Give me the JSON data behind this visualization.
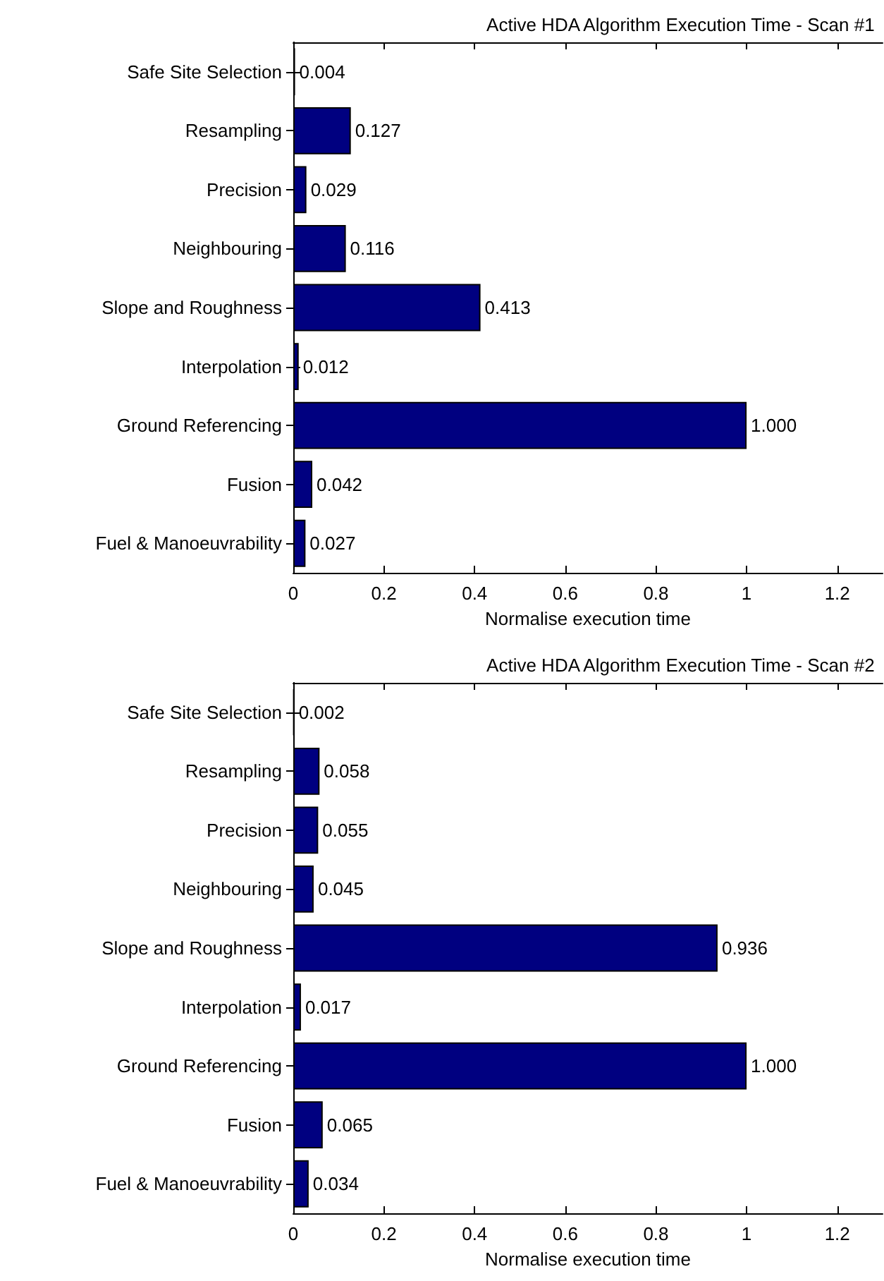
{
  "chart_data": [
    {
      "type": "bar",
      "orientation": "horizontal",
      "title": "Active HDA Algorithm Execution Time - Scan #1",
      "xlabel": "Normalise execution time",
      "categories": [
        "Safe Site Selection",
        "Resampling",
        "Precision",
        "Neighbouring",
        "Slope and Roughness",
        "Interpolation",
        "Ground Referencing",
        "Fusion",
        "Fuel & Manoeuvrability"
      ],
      "values": [
        0.004,
        0.127,
        0.029,
        0.116,
        0.413,
        0.012,
        1.0,
        0.042,
        0.027
      ],
      "value_labels": [
        "0.004",
        "0.127",
        "0.029",
        "0.116",
        "0.413",
        "0.012",
        "1.000",
        "0.042",
        "0.027"
      ],
      "color": "#000080",
      "xlim": [
        0,
        1.3
      ],
      "xticks": [
        0,
        0.2,
        0.4,
        0.6,
        0.8,
        1,
        1.2
      ]
    },
    {
      "type": "bar",
      "orientation": "horizontal",
      "title": "Active HDA Algorithm Execution Time - Scan #2",
      "xlabel": "Normalise execution time",
      "categories": [
        "Safe Site Selection",
        "Resampling",
        "Precision",
        "Neighbouring",
        "Slope and Roughness",
        "Interpolation",
        "Ground Referencing",
        "Fusion",
        "Fuel & Manoeuvrability"
      ],
      "values": [
        0.002,
        0.058,
        0.055,
        0.045,
        0.936,
        0.017,
        1.0,
        0.065,
        0.034
      ],
      "value_labels": [
        "0.002",
        "0.058",
        "0.055",
        "0.045",
        "0.936",
        "0.017",
        "1.000",
        "0.065",
        "0.034"
      ],
      "color": "#000080",
      "xlim": [
        0,
        1.3
      ],
      "xticks": [
        0,
        0.2,
        0.4,
        0.6,
        0.8,
        1,
        1.2
      ]
    }
  ]
}
